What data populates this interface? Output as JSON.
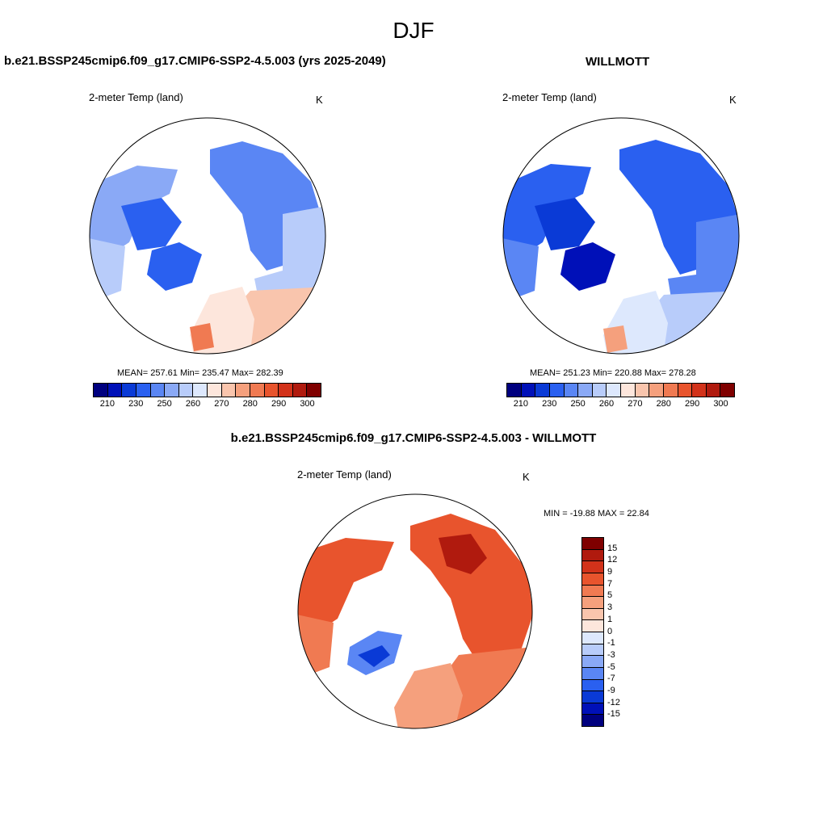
{
  "figure": {
    "season": "DJF"
  },
  "panels": [
    {
      "title": "b.e21.BSSP245cmip6.f09_g17.CMIP6-SSP2-4.5.003 (yrs 2025-2049)",
      "variable": "2-meter Temp (land)",
      "units": "K",
      "stats": "MEAN= 257.61  Min= 235.47  Max= 282.39"
    },
    {
      "title": "WILLMOTT",
      "variable": "2-meter Temp (land)",
      "units": "K",
      "stats": "MEAN= 251.23  Min= 220.88  Max= 278.28"
    },
    {
      "title": "b.e21.BSSP245cmip6.f09_g17.CMIP6-SSP2-4.5.003 - WILLMOTT",
      "variable": "2-meter Temp (land)",
      "units": "K",
      "stats": "MIN = -19.88 MAX =  22.84"
    }
  ],
  "abs_colorbar": {
    "colors": [
      "#00007f",
      "#0010b8",
      "#0a3ad6",
      "#2a60f0",
      "#5a86f4",
      "#8aa9f6",
      "#b8ccfa",
      "#dde8fd",
      "#fde6dc",
      "#f9c5ad",
      "#f5a07d",
      "#f07a52",
      "#e8542d",
      "#d2321a",
      "#b01a0e",
      "#7f0000"
    ],
    "labels": [
      "210",
      "230",
      "250",
      "260",
      "270",
      "280",
      "290",
      "300"
    ]
  },
  "diff_colorbar": {
    "colors": [
      "#7f0000",
      "#b01a0e",
      "#d2321a",
      "#e8542d",
      "#f07a52",
      "#f5a07d",
      "#f9c5ad",
      "#fde6dc",
      "#dde8fd",
      "#b8ccfa",
      "#8aa9f6",
      "#5a86f4",
      "#2a60f0",
      "#0a3ad6",
      "#0010b8",
      "#00007f"
    ],
    "labels": [
      "15",
      "12",
      "9",
      "7",
      "5",
      "3",
      "1",
      "0",
      "-1",
      "-3",
      "-5",
      "-7",
      "-9",
      "-12",
      "-15"
    ]
  }
}
